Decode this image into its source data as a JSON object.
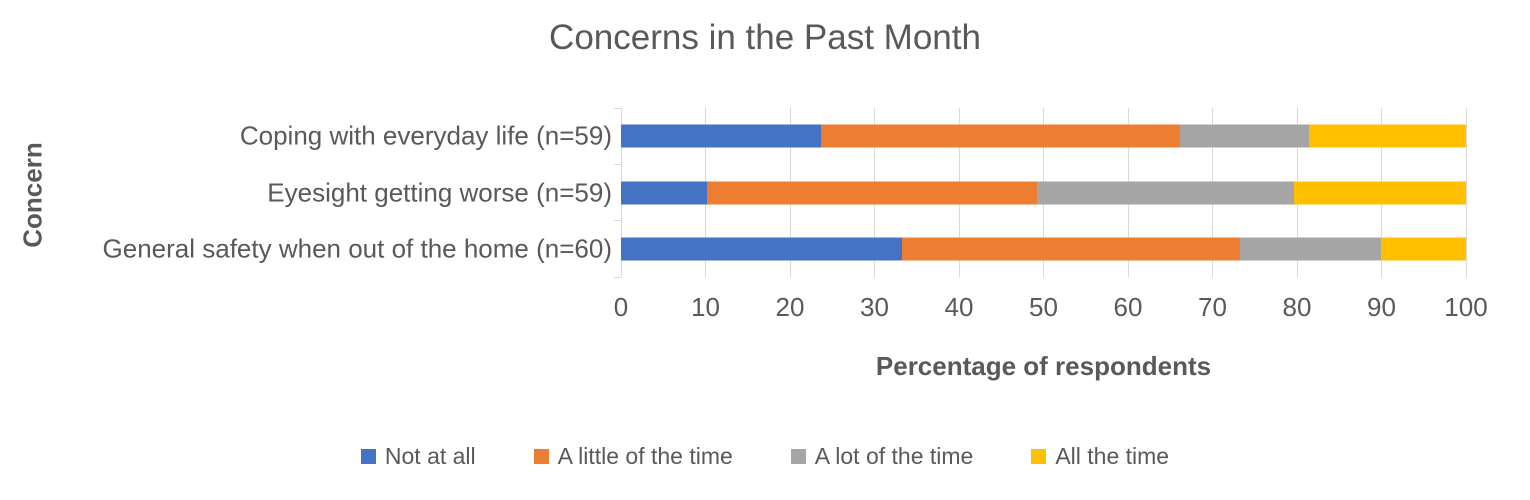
{
  "chart_data": {
    "type": "bar",
    "orientation": "horizontal",
    "stacked": true,
    "title": "Concerns in the Past Month",
    "xlabel": "Percentage of respondents",
    "ylabel": "Concern",
    "xlim": [
      0,
      100
    ],
    "x_ticks": [
      0,
      10,
      20,
      30,
      40,
      50,
      60,
      70,
      80,
      90,
      100
    ],
    "grid": "vertical-on",
    "legend_position": "bottom",
    "text_color": "#595959",
    "grid_color": "#d9d9d9",
    "categories": [
      "Coping with everyday life (n=59)",
      "Eyesight getting worse (n=59)",
      "General safety when out of the home (n=60)"
    ],
    "series": [
      {
        "name": "Not at all",
        "color": "#4472c4",
        "values": [
          23.7,
          10.2,
          33.3
        ]
      },
      {
        "name": "A little of the time",
        "color": "#ed7d31",
        "values": [
          42.4,
          39.0,
          40.0
        ]
      },
      {
        "name": "A lot of the time",
        "color": "#a5a5a5",
        "values": [
          15.3,
          30.5,
          16.7
        ]
      },
      {
        "name": "All the time",
        "color": "#ffc000",
        "values": [
          18.6,
          20.3,
          10.0
        ]
      }
    ]
  }
}
